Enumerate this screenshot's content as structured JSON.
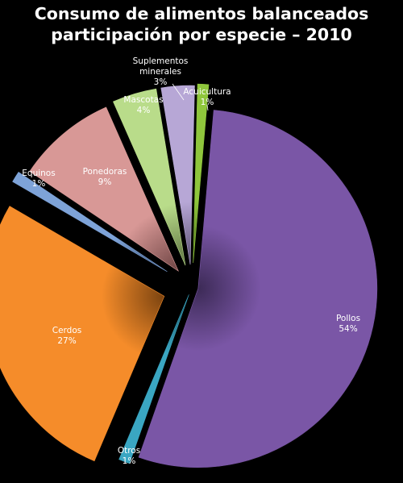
{
  "chart_data": {
    "type": "pie",
    "title_lines": [
      "Consumo de alimentos balanceados",
      "participación por especie – 2010"
    ],
    "slices": [
      {
        "name": "Pollos",
        "value": 54,
        "pct_label": "54%",
        "color": "#7a56a6",
        "dark": "#3c2a56",
        "label_color": "#ffffff"
      },
      {
        "name": "Otros",
        "value": 1,
        "pct_label": "1%",
        "color": "#3aa6c2",
        "dark": "#1b5262",
        "label_color": "#ffffff"
      },
      {
        "name": "Cerdos",
        "value": 27,
        "pct_label": "27%",
        "color": "#f58c2a",
        "dark": "#7a4310",
        "label_color": "#ffffff"
      },
      {
        "name": "Equinos",
        "value": 1,
        "pct_label": "1%",
        "color": "#7ea3d8",
        "dark": "#3c5276",
        "label_color": "#ffffff"
      },
      {
        "name": "Ponedoras",
        "value": 9,
        "pct_label": "9%",
        "color": "#d89896",
        "dark": "#6e4443",
        "label_color": "#ffffff"
      },
      {
        "name": "Mascotas",
        "value": 4,
        "pct_label": "4%",
        "color": "#b9dc8a",
        "dark": "#5c7040",
        "label_color": "#ffffff"
      },
      {
        "name": "Suplementos minerales",
        "value": 3,
        "pct_label": "3%",
        "color": "#b7a7d6",
        "dark": "#574d6e",
        "label_color": "#ffffff"
      },
      {
        "name": "Acuicultura",
        "value": 1,
        "pct_label": "1%",
        "color": "#8fc63c",
        "dark": "#46641a",
        "label_color": "#ffffff"
      }
    ],
    "legend": "none"
  }
}
